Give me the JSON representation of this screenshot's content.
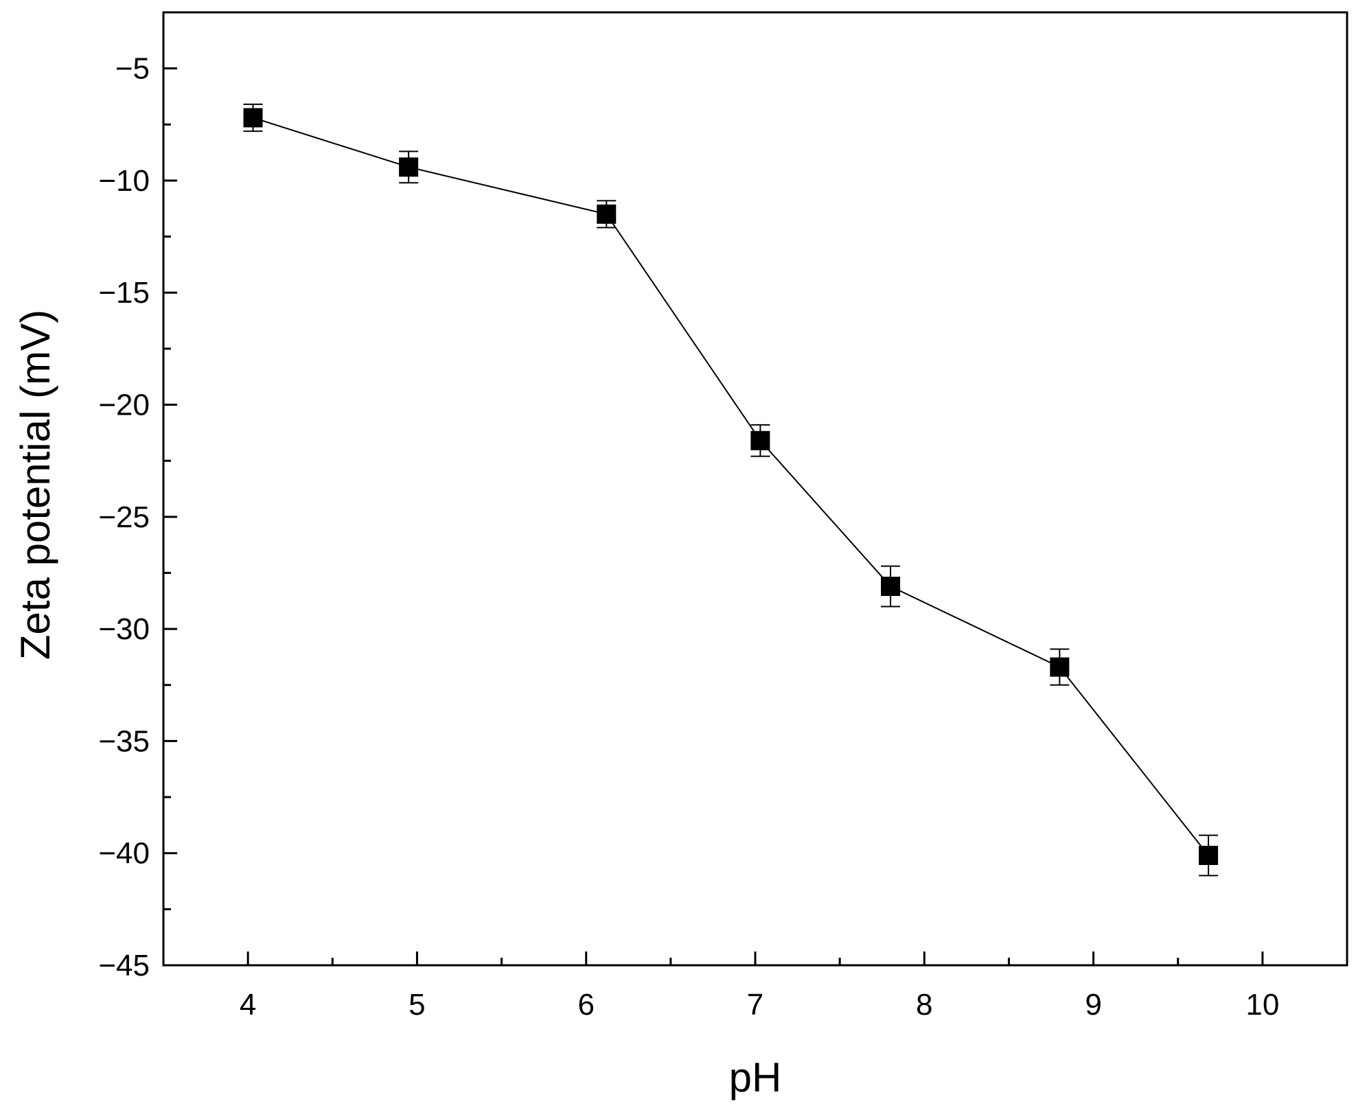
{
  "chart_data": {
    "type": "line",
    "title": "",
    "xlabel": "pH",
    "ylabel": "Zeta potential (mV)",
    "xlim": [
      3.5,
      10.5
    ],
    "ylim": [
      -45,
      -2.5
    ],
    "x_ticks": [
      4,
      5,
      6,
      7,
      8,
      9,
      10
    ],
    "x_tick_labels": [
      "4",
      "5",
      "6",
      "7",
      "8",
      "9",
      "10"
    ],
    "y_ticks": [
      -5,
      -10,
      -15,
      -20,
      -25,
      -30,
      -35,
      -40,
      -45
    ],
    "y_tick_labels": [
      "−5",
      "−10",
      "−15",
      "−20",
      "−25",
      "−30",
      "−35",
      "−40",
      "−45"
    ],
    "grid": false,
    "legend": "none",
    "marker": "square",
    "color": "#000000",
    "series": [
      {
        "x": [
          4.03,
          4.95,
          6.12,
          7.03,
          7.8,
          8.8,
          9.68
        ],
        "y": [
          -7.2,
          -9.4,
          -11.5,
          -21.6,
          -28.1,
          -31.7,
          -40.1
        ],
        "y_error": [
          0.6,
          0.7,
          0.6,
          0.7,
          0.9,
          0.8,
          0.9
        ]
      }
    ]
  }
}
